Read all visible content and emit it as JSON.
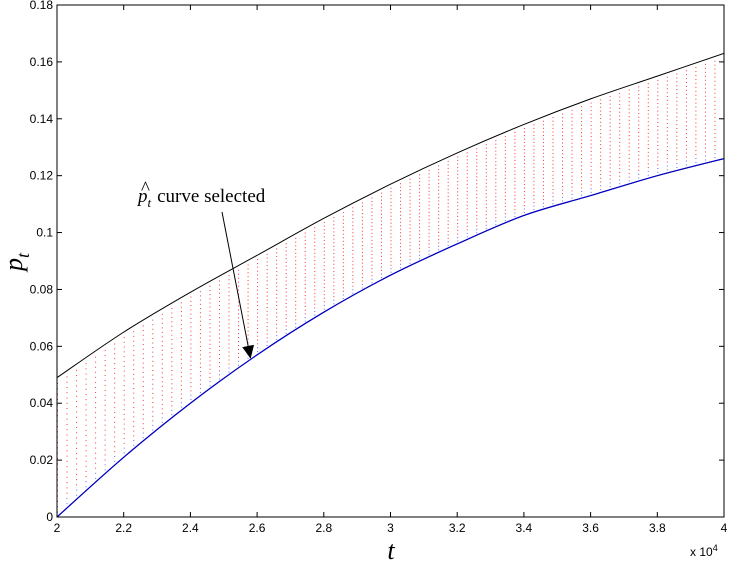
{
  "chart_data": {
    "type": "line",
    "title": "",
    "xlabel": "t",
    "ylabel": "p",
    "ylabel_subscript": "t",
    "x_multiplier": "x 10",
    "x_multiplier_exp": "4",
    "xlim": [
      2,
      4
    ],
    "ylim": [
      0,
      0.18
    ],
    "grid": false,
    "legend": "none",
    "xticks": [
      {
        "value": 2.0,
        "label": "2"
      },
      {
        "value": 2.2,
        "label": "2.2"
      },
      {
        "value": 2.4,
        "label": "2.4"
      },
      {
        "value": 2.6,
        "label": "2.6"
      },
      {
        "value": 2.8,
        "label": "2.8"
      },
      {
        "value": 3.0,
        "label": "3"
      },
      {
        "value": 3.2,
        "label": "3.2"
      },
      {
        "value": 3.4,
        "label": "3.4"
      },
      {
        "value": 3.6,
        "label": "3.6"
      },
      {
        "value": 3.8,
        "label": "3.8"
      },
      {
        "value": 4.0,
        "label": "4"
      }
    ],
    "yticks": [
      {
        "value": 0,
        "label": "0"
      },
      {
        "value": 0.02,
        "label": "0.02"
      },
      {
        "value": 0.04,
        "label": "0.04"
      },
      {
        "value": 0.06,
        "label": "0.06"
      },
      {
        "value": 0.08,
        "label": "0.08"
      },
      {
        "value": 0.1,
        "label": "0.1"
      },
      {
        "value": 0.12,
        "label": "0.12"
      },
      {
        "value": 0.14,
        "label": "0.14"
      },
      {
        "value": 0.16,
        "label": "0.16"
      },
      {
        "value": 0.18,
        "label": "0.18"
      }
    ],
    "x": [
      2.0,
      2.2,
      2.4,
      2.6,
      2.8,
      3.0,
      3.2,
      3.4,
      3.6,
      3.8,
      4.0
    ],
    "series": [
      {
        "role": "upper-bound",
        "color": "#000000",
        "values": [
          0.049,
          0.065,
          0.079,
          0.092,
          0.105,
          0.117,
          0.128,
          0.138,
          0.147,
          0.155,
          0.163
        ]
      },
      {
        "role": "lower-bound",
        "color": "#000000",
        "values": [
          0.0,
          0.021,
          0.04,
          0.057,
          0.072,
          0.085,
          0.096,
          0.106,
          0.113,
          0.12,
          0.126
        ]
      },
      {
        "role": "selected",
        "color": "#0000cc",
        "values": [
          0.0,
          0.021,
          0.04,
          0.057,
          0.072,
          0.085,
          0.096,
          0.106,
          0.113,
          0.12,
          0.126
        ]
      }
    ],
    "band_fill": {
      "style": "dotted",
      "color": "#ff3333",
      "secondary_color": "#6666ff"
    },
    "annotation": {
      "text": "curve selected",
      "symbol": "p",
      "symbol_subscript": "t",
      "symbol_accent": "^",
      "arrow_target": {
        "x": 2.58,
        "y": 0.056
      }
    }
  }
}
